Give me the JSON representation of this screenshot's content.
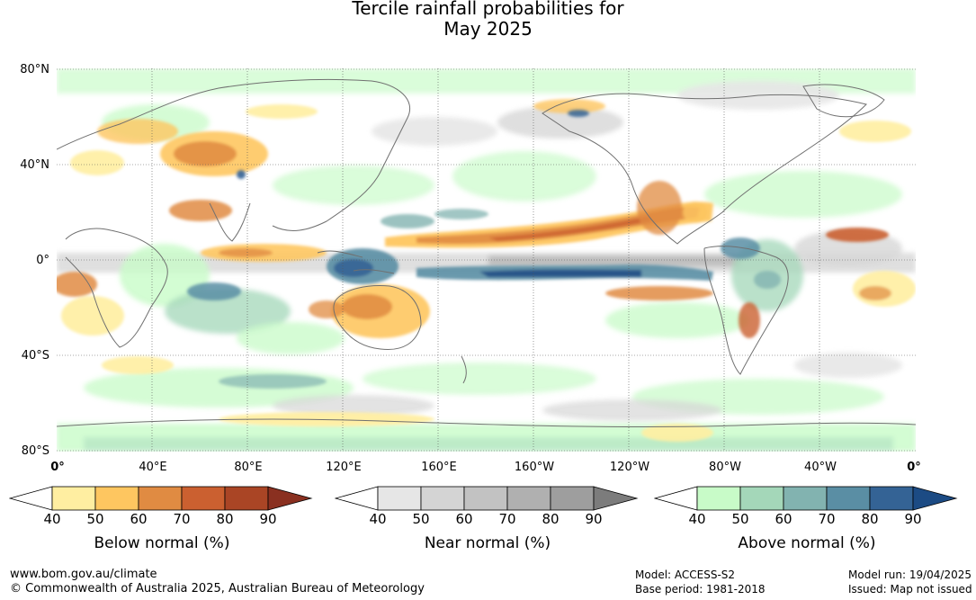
{
  "title": {
    "line1": "Tercile rainfall probabilities for",
    "line2": "May 2025"
  },
  "map": {
    "lat_labels": [
      "80°N",
      "40°N",
      "0°",
      "40°S",
      "80°S"
    ],
    "lon_labels": [
      "0°",
      "40°E",
      "80°E",
      "120°E",
      "160°E",
      "160°W",
      "120°W",
      "80°W",
      "40°W",
      "0°"
    ],
    "gridlines": true
  },
  "legends": [
    {
      "name": "Below normal (%)",
      "ticks": [
        "40",
        "50",
        "60",
        "70",
        "80",
        "90"
      ],
      "colors": [
        "#ffeea1",
        "#fec660",
        "#e08b42",
        "#cb6030",
        "#aa4525",
        "#8a3020"
      ]
    },
    {
      "name": "Near normal (%)",
      "ticks": [
        "40",
        "50",
        "60",
        "70",
        "80",
        "90"
      ],
      "colors": [
        "#e6e6e6",
        "#d4d4d4",
        "#c2c2c2",
        "#b0b0b0",
        "#9e9e9e",
        "#7c7c7c"
      ]
    },
    {
      "name": "Above normal (%)",
      "ticks": [
        "40",
        "50",
        "60",
        "70",
        "80",
        "90"
      ],
      "colors": [
        "#c8fbc8",
        "#a4d7b9",
        "#82b3b0",
        "#5a8ea4",
        "#346395",
        "#1c4b84"
      ]
    }
  ],
  "footer": {
    "website": "www.bom.gov.au/climate",
    "copyright": "© Commonwealth of Australia 2025, Australian Bureau of Meteorology",
    "model": "Model: ACCESS-S2",
    "base_period": "Base period: 1981-2018",
    "model_run": "Model run: 19/04/2025",
    "issued": "Issued: Map not issued"
  }
}
